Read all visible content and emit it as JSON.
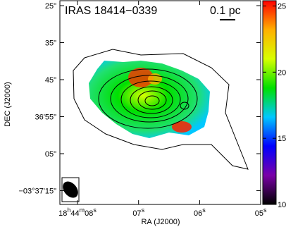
{
  "chart_data": {
    "type": "map",
    "title": "IRAS 18414−0339",
    "scale_label": "0.1 pc",
    "x_label": "RA (J2000)",
    "y_label": "DEC (J2000)",
    "x_categories": [
      "18h44m08s",
      "07s",
      "06s",
      "05s"
    ],
    "y_categories": [
      "25\"",
      "35\"",
      "45\"",
      "36'55\"",
      "05\"",
      "−03°37'15\""
    ],
    "clim": [
      10,
      25.4
    ],
    "cticks": [
      10,
      15,
      20,
      25
    ],
    "colormap": [
      "#000000",
      "#7a00a8",
      "#0000ff",
      "#00c8ff",
      "#00e000",
      "#d8ff00",
      "#ffb000",
      "#ff0000"
    ]
  }
}
